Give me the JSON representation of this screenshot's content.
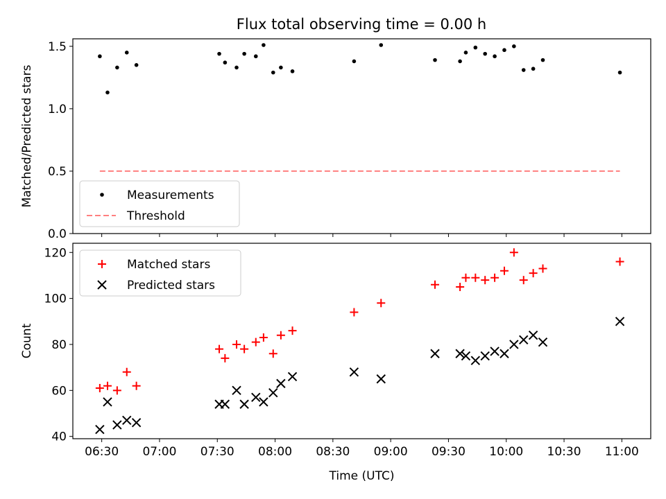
{
  "chart_data": [
    {
      "type": "scatter",
      "title": "Flux total observing time = 0.00 h",
      "xlabel": "",
      "ylabel": "Matched/Predicted stars",
      "xlim": [
        "06:15",
        "11:15"
      ],
      "ylim": [
        0,
        1.56
      ],
      "x_ticks": [
        "06:30",
        "07:00",
        "07:30",
        "08:00",
        "08:30",
        "09:00",
        "09:30",
        "10:00",
        "10:30",
        "11:00"
      ],
      "y_ticks": [
        "0.0",
        "0.5",
        "1.0",
        "1.5"
      ],
      "grid": false,
      "legend_position": "lower-left",
      "series": [
        {
          "name": "Measurements",
          "marker": "dot",
          "color": "#000000",
          "x": [
            "06:29",
            "06:33",
            "06:38",
            "06:43",
            "06:48",
            "07:31",
            "07:34",
            "07:40",
            "07:44",
            "07:50",
            "07:54",
            "07:59",
            "08:03",
            "08:09",
            "08:41",
            "08:55",
            "09:23",
            "09:36",
            "09:39",
            "09:44",
            "09:49",
            "09:54",
            "09:59",
            "10:04",
            "10:09",
            "10:14",
            "10:19",
            "10:59"
          ],
          "y": [
            1.42,
            1.13,
            1.33,
            1.45,
            1.35,
            1.44,
            1.37,
            1.33,
            1.44,
            1.42,
            1.51,
            1.29,
            1.33,
            1.3,
            1.38,
            1.51,
            1.39,
            1.38,
            1.45,
            1.49,
            1.44,
            1.42,
            1.47,
            1.5,
            1.31,
            1.32,
            1.39,
            1.29
          ]
        },
        {
          "name": "Threshold",
          "line_style": "dashed",
          "color": "#ff7f7f",
          "x": [
            "06:29",
            "10:59"
          ],
          "y": [
            0.5,
            0.5
          ]
        }
      ]
    },
    {
      "type": "scatter",
      "title": "",
      "xlabel": "Time (UTC)",
      "ylabel": "Count",
      "xlim": [
        "06:15",
        "11:15"
      ],
      "ylim": [
        39,
        124
      ],
      "x_ticks": [
        "06:30",
        "07:00",
        "07:30",
        "08:00",
        "08:30",
        "09:00",
        "09:30",
        "10:00",
        "10:30",
        "11:00"
      ],
      "y_ticks": [
        "40",
        "60",
        "80",
        "100",
        "120"
      ],
      "grid": false,
      "legend_position": "upper-left",
      "series": [
        {
          "name": "Matched stars",
          "marker": "plus",
          "color": "#ff0000",
          "x": [
            "06:29",
            "06:33",
            "06:38",
            "06:43",
            "06:48",
            "07:31",
            "07:34",
            "07:40",
            "07:44",
            "07:50",
            "07:54",
            "07:59",
            "08:03",
            "08:09",
            "08:41",
            "08:55",
            "09:23",
            "09:36",
            "09:39",
            "09:44",
            "09:49",
            "09:54",
            "09:59",
            "10:04",
            "10:09",
            "10:14",
            "10:19",
            "10:59"
          ],
          "y": [
            61,
            62,
            60,
            68,
            62,
            78,
            74,
            80,
            78,
            81,
            83,
            76,
            84,
            86,
            94,
            98,
            106,
            105,
            109,
            109,
            108,
            109,
            112,
            120,
            108,
            111,
            113,
            116
          ]
        },
        {
          "name": "Predicted stars",
          "marker": "x",
          "color": "#000000",
          "x": [
            "06:29",
            "06:33",
            "06:38",
            "06:43",
            "06:48",
            "07:31",
            "07:34",
            "07:40",
            "07:44",
            "07:50",
            "07:54",
            "07:59",
            "08:03",
            "08:09",
            "08:41",
            "08:55",
            "09:23",
            "09:36",
            "09:39",
            "09:44",
            "09:49",
            "09:54",
            "09:59",
            "10:04",
            "10:09",
            "10:14",
            "10:19",
            "10:59"
          ],
          "y": [
            43,
            55,
            45,
            47,
            46,
            54,
            54,
            60,
            54,
            57,
            55,
            59,
            63,
            66,
            68,
            65,
            76,
            76,
            75,
            73,
            75,
            77,
            76,
            80,
            82,
            84,
            81,
            90
          ]
        }
      ]
    }
  ]
}
